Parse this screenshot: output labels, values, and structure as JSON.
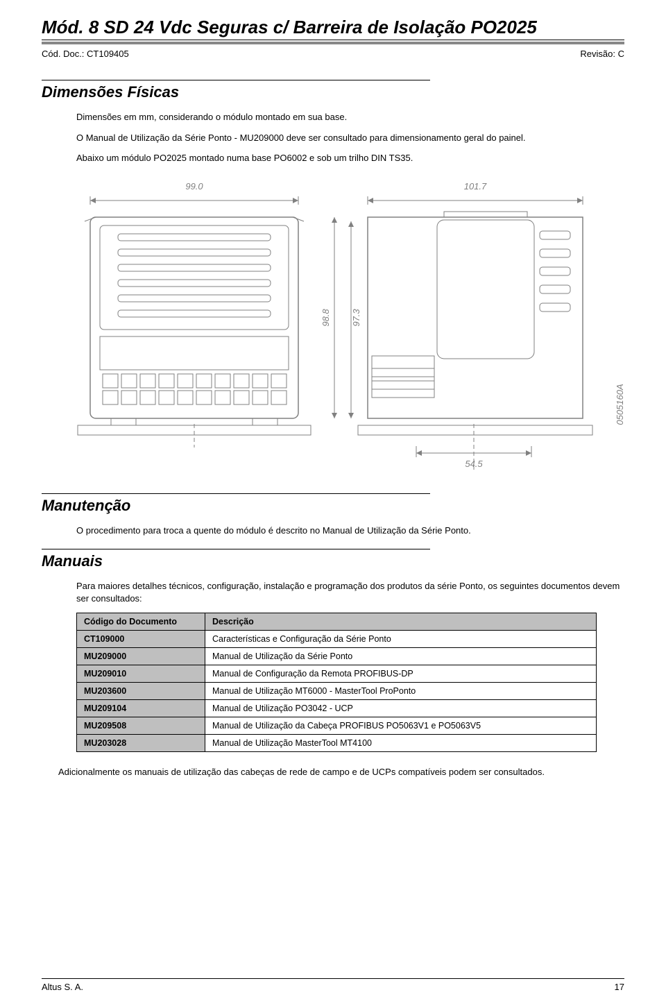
{
  "header": {
    "title_main": "Mód. 8 SD 24 Vdc Seguras c/ Barreira de Isolação ",
    "title_code": "PO2025",
    "doc_code_label": "Cód. Doc.: CT109405",
    "revision_label": "Revisão: C"
  },
  "section_dim": {
    "title": "Dimensões Físicas",
    "p1": "Dimensões em mm, considerando o módulo montado em sua base.",
    "p2": "O Manual de Utilização da Série Ponto - MU209000 deve ser consultado para dimensionamento geral do painel.",
    "p3": "Abaixo um módulo PO2025 montado numa base PO6002 e sob um trilho DIN TS35."
  },
  "diagram": {
    "dim_top_left": "99.0",
    "dim_top_right": "101.7",
    "dim_v_left": "98.8",
    "dim_v_right": "97.3",
    "dim_bottom": "54.5",
    "drawing_code": "0505160A",
    "line_color": "#808080",
    "dim_text_color": "#808080",
    "dim_fontsize": 13
  },
  "section_manut": {
    "title": "Manutenção",
    "p1": "O procedimento para troca a quente do módulo é descrito no Manual de Utilização da Série Ponto."
  },
  "section_manuais": {
    "title": "Manuais",
    "p1": "Para maiores detalhes técnicos, configuração, instalação e programação dos produtos da série Ponto, os seguintes documentos devem ser consultados:",
    "table": {
      "col1": "Código do Documento",
      "col2": "Descrição",
      "rows": [
        [
          "CT109000",
          "Características e Configuração da Série Ponto"
        ],
        [
          "MU209000",
          "Manual de Utilização da Série Ponto"
        ],
        [
          "MU209010",
          "Manual de Configuração da Remota PROFIBUS-DP"
        ],
        [
          "MU203600",
          "Manual de Utilização MT6000 - MasterTool ProPonto"
        ],
        [
          "MU209104",
          "Manual de Utilização PO3042 - UCP"
        ],
        [
          "MU209508",
          "Manual de Utilização da Cabeça PROFIBUS PO5063V1 e PO5063V5"
        ],
        [
          "MU203028",
          "Manual de Utilização MasterTool MT4100"
        ]
      ],
      "header_bg": "#bfbfbf",
      "col1_width": 185
    },
    "p2": "Adicionalmente os manuais de utilização das cabeças de rede de campo e de UCPs compatíveis podem ser consultados."
  },
  "footer": {
    "company": "Altus S. A.",
    "page": "17"
  }
}
